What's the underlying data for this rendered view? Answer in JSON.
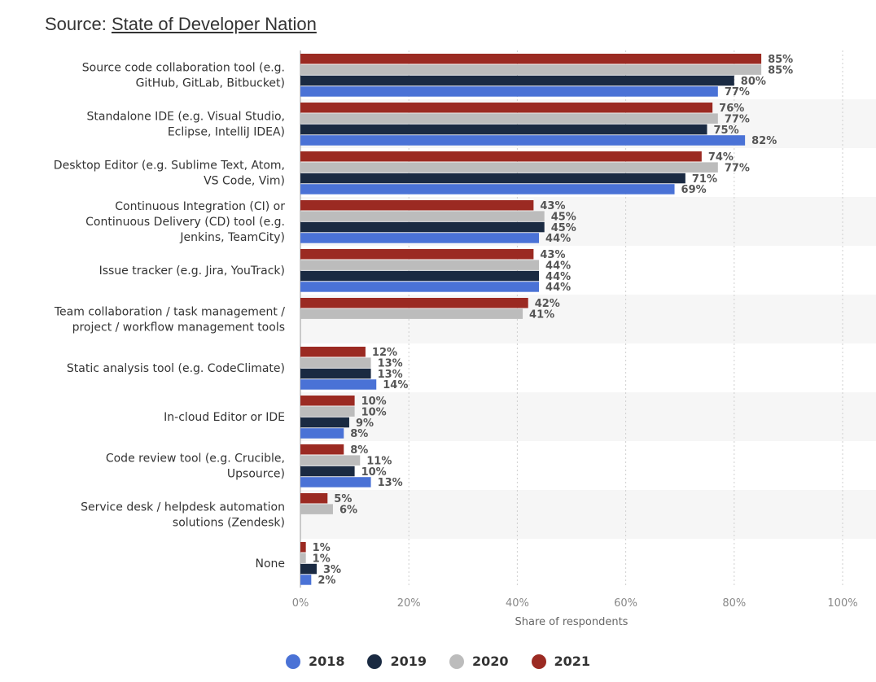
{
  "source": {
    "prefix": "Source: ",
    "link_text": "State of Developer Nation"
  },
  "chart_data": {
    "type": "bar",
    "orientation": "horizontal",
    "xlabel": "Share of respondents",
    "xlim": [
      0,
      100
    ],
    "x_ticks": [
      "0%",
      "20%",
      "40%",
      "60%",
      "80%",
      "100%"
    ],
    "grid": true,
    "legend_position": "bottom",
    "categories": [
      [
        "Source code collaboration tool (e.g.",
        "GitHub, GitLab, Bitbucket)"
      ],
      [
        "Standalone IDE (e.g. Visual Studio,",
        "Eclipse, IntelliJ IDEA)"
      ],
      [
        "Desktop Editor (e.g. Sublime Text, Atom,",
        "VS Code, Vim)"
      ],
      [
        "Continuous Integration (CI) or",
        "Continuous Delivery (CD) tool (e.g.",
        "Jenkins, TeamCity)"
      ],
      [
        "Issue tracker (e.g. Jira, YouTrack)"
      ],
      [
        "Team collaboration / task management /",
        "project / workflow management tools"
      ],
      [
        "Static analysis tool (e.g. CodeClimate)"
      ],
      [
        "In-cloud Editor or IDE"
      ],
      [
        "Code review tool (e.g. Crucible,",
        "Upsource)"
      ],
      [
        "Service desk / helpdesk automation",
        "solutions (Zendesk)"
      ],
      [
        "None"
      ]
    ],
    "series": [
      {
        "name": "2021",
        "color": "#9b2a22",
        "values": [
          85,
          76,
          74,
          43,
          43,
          42,
          12,
          10,
          8,
          5,
          1
        ]
      },
      {
        "name": "2020",
        "color": "#bcbcbc",
        "values": [
          85,
          77,
          77,
          45,
          44,
          41,
          13,
          10,
          11,
          6,
          1
        ]
      },
      {
        "name": "2019",
        "color": "#1a2a42",
        "values": [
          80,
          75,
          71,
          45,
          44,
          null,
          13,
          9,
          10,
          null,
          3
        ]
      },
      {
        "name": "2018",
        "color": "#4a72d6",
        "values": [
          77,
          82,
          69,
          44,
          44,
          null,
          14,
          8,
          13,
          null,
          2
        ]
      }
    ],
    "legend": [
      {
        "name": "2018",
        "color": "#4a72d6"
      },
      {
        "name": "2019",
        "color": "#1a2a42"
      },
      {
        "name": "2020",
        "color": "#bcbcbc"
      },
      {
        "name": "2021",
        "color": "#9b2a22"
      }
    ],
    "value_suffix": "%"
  }
}
